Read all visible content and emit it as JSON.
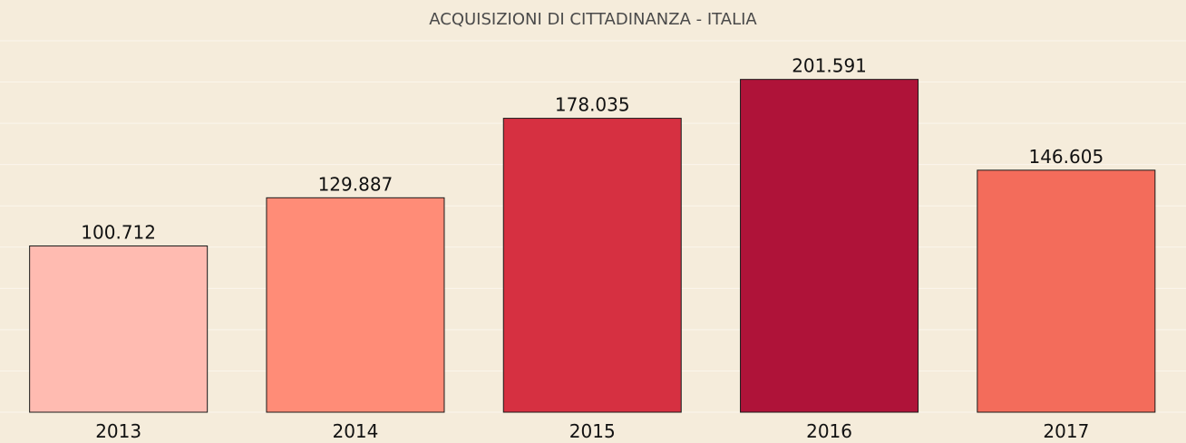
{
  "chart_data": {
    "type": "bar",
    "title": "ACQUISIZIONI DI CITTADINANZA - ITALIA",
    "xlabel": "",
    "ylabel": "",
    "categories": [
      "2013",
      "2014",
      "2015",
      "2016",
      "2017"
    ],
    "values": [
      100712,
      129887,
      178035,
      201591,
      146605
    ],
    "value_labels": [
      "100.712",
      "129.887",
      "178.035",
      "201.591",
      "146.605"
    ],
    "colors": [
      "#ffbbb1",
      "#ff8c77",
      "#d63041",
      "#af1339",
      "#f36c5b"
    ],
    "ylim": [
      0,
      225000
    ],
    "grid": true,
    "legend": "none"
  }
}
